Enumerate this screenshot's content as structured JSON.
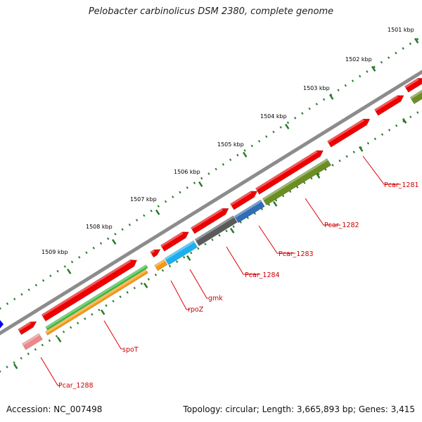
{
  "title": "Pelobacter carbinolicus DSM 2380, complete genome",
  "footer": {
    "accession": "Accession: NC_007498",
    "summary": "Topology: circular; Length: 3,665,893 bp; Genes: 3,415"
  },
  "ruler_labels": [
    "1501 kbp",
    "1502 kbp",
    "1503 kbp",
    "1504 kbp",
    "1505 kbp",
    "1506 kbp",
    "1507 kbp",
    "1508 kbp",
    "1509 kbp"
  ],
  "gene_labels": [
    "Pcar_1281",
    "Pcar_1282",
    "Pcar_1283",
    "Pcar_1284",
    "gmk",
    "rpoZ",
    "spoT",
    "Pcar_1288"
  ],
  "colors": {
    "backbone": "#8c8c8c",
    "ruler": "#2a7a2a",
    "leader": "#e00000",
    "label": "#cc0000",
    "red": "#ee0000",
    "olive": "#6b8e23",
    "blue_steel": "#2f6db5",
    "dark_gray": "#5a5a5a",
    "cyan": "#1ab0f0",
    "orange": "#f59a10",
    "green": "#33bb33",
    "pink": "#ee8888",
    "edge_blue": "#0000ee"
  }
}
